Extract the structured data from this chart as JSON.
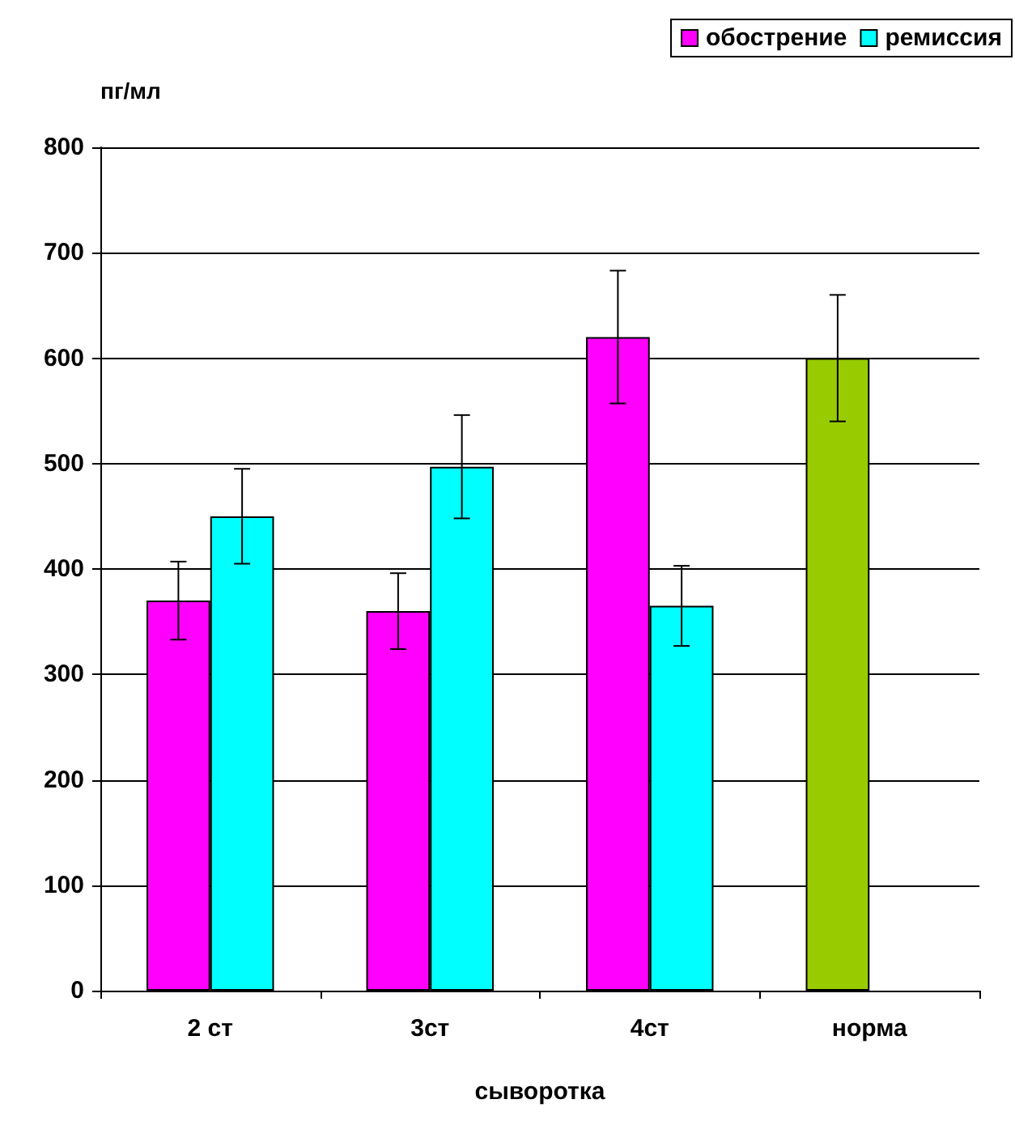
{
  "chart_data": {
    "type": "bar",
    "ylabel": "пг/мл",
    "xlabel": "сыворотка",
    "categories": [
      "2 ст",
      "3ст",
      "4ст",
      "норма"
    ],
    "series": [
      {
        "name": "обострение",
        "color": "#ff00ff",
        "colors": [
          "#ff00ff",
          "#ff00ff",
          "#ff00ff",
          "#99cc00"
        ],
        "values": [
          370,
          360,
          620,
          600
        ],
        "errors": [
          37,
          36,
          63,
          60
        ]
      },
      {
        "name": "ремиссия",
        "color": "#00ffff",
        "values": [
          450,
          497,
          365,
          null
        ],
        "errors": [
          45,
          49,
          38,
          null
        ]
      }
    ],
    "ylim": [
      0,
      800
    ],
    "yticks": [
      0,
      100,
      200,
      300,
      400,
      500,
      600,
      700,
      800
    ],
    "grid": "y",
    "legend": "top right"
  }
}
